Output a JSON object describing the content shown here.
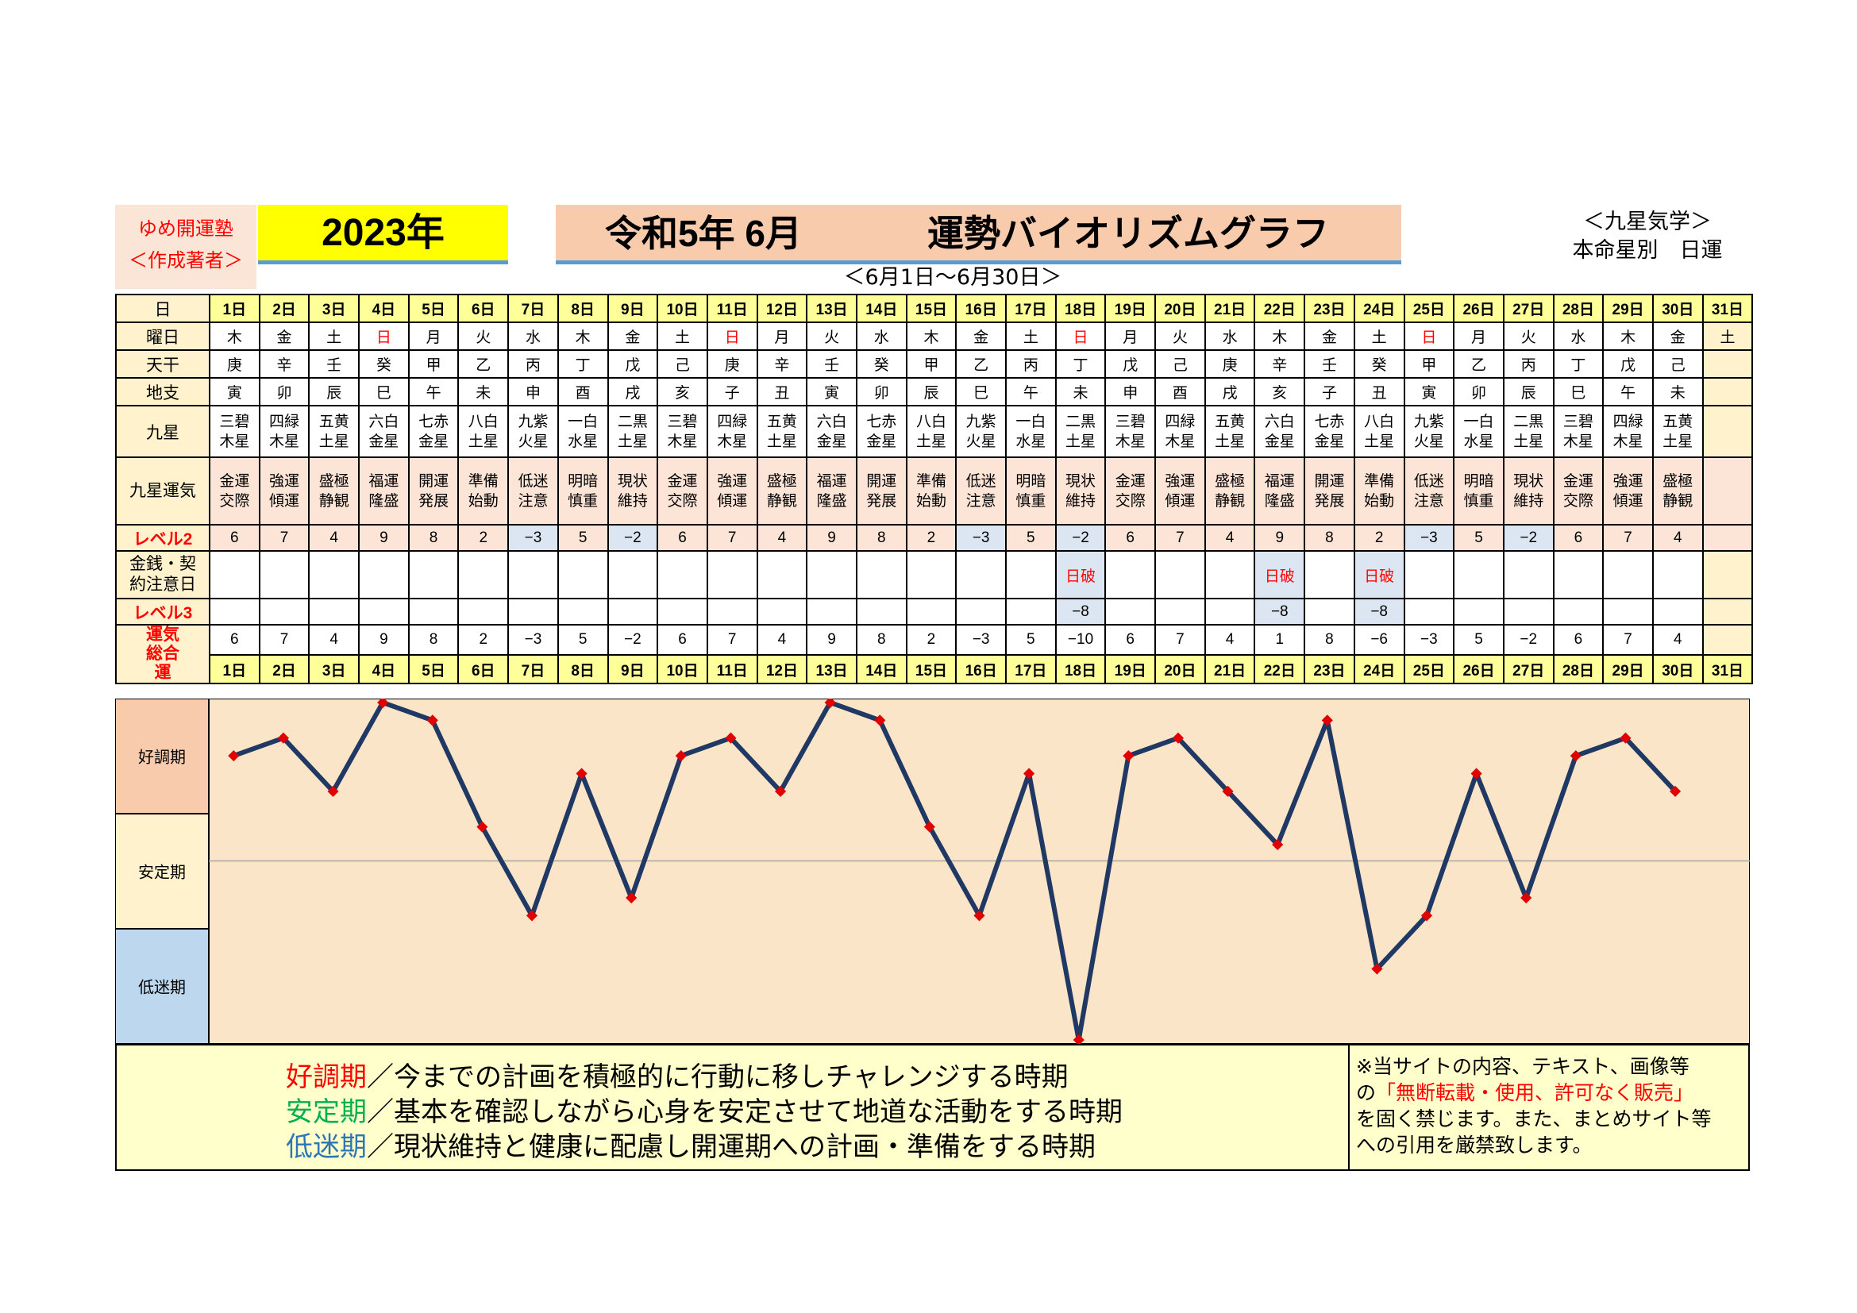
{
  "header": {
    "brand_line1": "ゆめ開運塾",
    "brand_line2": "＜作成著者＞",
    "year": "2023年",
    "title_left": "令和5年 6月",
    "title_right": "運勢バイオリズムグラフ",
    "subtitle": "＜6月1日～6月30日＞",
    "source_line1": "＜九星気学＞",
    "source_line2": "本命星別　日運"
  },
  "row_labels": {
    "day": "日",
    "weekday": "曜日",
    "stem": "天干",
    "branch": "地支",
    "star": "九星",
    "fortune": "九星運気",
    "level2": "レベル2",
    "caution": "金銭・契約注意日",
    "level3": "レベル3",
    "total": "運気総合運"
  },
  "days": [
    "1日",
    "2日",
    "3日",
    "4日",
    "5日",
    "6日",
    "7日",
    "8日",
    "9日",
    "10日",
    "11日",
    "12日",
    "13日",
    "14日",
    "15日",
    "16日",
    "17日",
    "18日",
    "19日",
    "20日",
    "21日",
    "22日",
    "23日",
    "24日",
    "25日",
    "26日",
    "27日",
    "28日",
    "29日",
    "30日",
    "31日"
  ],
  "weekdays": [
    "木",
    "金",
    "土",
    "日",
    "月",
    "火",
    "水",
    "木",
    "金",
    "土",
    "日",
    "月",
    "火",
    "水",
    "木",
    "金",
    "土",
    "日",
    "月",
    "火",
    "水",
    "木",
    "金",
    "土",
    "日",
    "月",
    "火",
    "水",
    "木",
    "金",
    "土"
  ],
  "stems": [
    "庚",
    "辛",
    "壬",
    "癸",
    "甲",
    "乙",
    "丙",
    "丁",
    "戊",
    "己",
    "庚",
    "辛",
    "壬",
    "癸",
    "甲",
    "乙",
    "丙",
    "丁",
    "戊",
    "己",
    "庚",
    "辛",
    "壬",
    "癸",
    "甲",
    "乙",
    "丙",
    "丁",
    "戊",
    "己",
    ""
  ],
  "branches": [
    "寅",
    "卯",
    "辰",
    "巳",
    "午",
    "未",
    "申",
    "酉",
    "戌",
    "亥",
    "子",
    "丑",
    "寅",
    "卯",
    "辰",
    "巳",
    "午",
    "未",
    "申",
    "酉",
    "戌",
    "亥",
    "子",
    "丑",
    "寅",
    "卯",
    "辰",
    "巳",
    "午",
    "未",
    ""
  ],
  "stars": [
    [
      "三碧",
      "木星"
    ],
    [
      "四緑",
      "木星"
    ],
    [
      "五黄",
      "土星"
    ],
    [
      "六白",
      "金星"
    ],
    [
      "七赤",
      "金星"
    ],
    [
      "八白",
      "土星"
    ],
    [
      "九紫",
      "火星"
    ],
    [
      "一白",
      "水星"
    ],
    [
      "二黒",
      "土星"
    ],
    [
      "三碧",
      "木星"
    ],
    [
      "四緑",
      "木星"
    ],
    [
      "五黄",
      "土星"
    ],
    [
      "六白",
      "金星"
    ],
    [
      "七赤",
      "金星"
    ],
    [
      "八白",
      "土星"
    ],
    [
      "九紫",
      "火星"
    ],
    [
      "一白",
      "水星"
    ],
    [
      "二黒",
      "土星"
    ],
    [
      "三碧",
      "木星"
    ],
    [
      "四緑",
      "木星"
    ],
    [
      "五黄",
      "土星"
    ],
    [
      "六白",
      "金星"
    ],
    [
      "七赤",
      "金星"
    ],
    [
      "八白",
      "土星"
    ],
    [
      "九紫",
      "火星"
    ],
    [
      "一白",
      "水星"
    ],
    [
      "二黒",
      "土星"
    ],
    [
      "三碧",
      "木星"
    ],
    [
      "四緑",
      "木星"
    ],
    [
      "五黄",
      "土星"
    ],
    [
      "",
      ""
    ]
  ],
  "fortunes": [
    [
      "金運",
      "交際"
    ],
    [
      "強運",
      "傾運"
    ],
    [
      "盛極",
      "静観"
    ],
    [
      "福運",
      "隆盛"
    ],
    [
      "開運",
      "発展"
    ],
    [
      "準備",
      "始動"
    ],
    [
      "低迷",
      "注意"
    ],
    [
      "明暗",
      "慎重"
    ],
    [
      "現状",
      "維持"
    ],
    [
      "金運",
      "交際"
    ],
    [
      "強運",
      "傾運"
    ],
    [
      "盛極",
      "静観"
    ],
    [
      "福運",
      "隆盛"
    ],
    [
      "開運",
      "発展"
    ],
    [
      "準備",
      "始動"
    ],
    [
      "低迷",
      "注意"
    ],
    [
      "明暗",
      "慎重"
    ],
    [
      "現状",
      "維持"
    ],
    [
      "金運",
      "交際"
    ],
    [
      "強運",
      "傾運"
    ],
    [
      "盛極",
      "静観"
    ],
    [
      "福運",
      "隆盛"
    ],
    [
      "開運",
      "発展"
    ],
    [
      "準備",
      "始動"
    ],
    [
      "低迷",
      "注意"
    ],
    [
      "明暗",
      "慎重"
    ],
    [
      "現状",
      "維持"
    ],
    [
      "金運",
      "交際"
    ],
    [
      "強運",
      "傾運"
    ],
    [
      "盛極",
      "静観"
    ],
    [
      "",
      ""
    ]
  ],
  "level2": [
    "6",
    "7",
    "4",
    "9",
    "8",
    "2",
    "−3",
    "5",
    "−2",
    "6",
    "7",
    "4",
    "9",
    "8",
    "2",
    "−3",
    "5",
    "−2",
    "6",
    "7",
    "4",
    "9",
    "8",
    "2",
    "−3",
    "5",
    "−2",
    "6",
    "7",
    "4",
    ""
  ],
  "caution": [
    "",
    "",
    "",
    "",
    "",
    "",
    "",
    "",
    "",
    "",
    "",
    "",
    "",
    "",
    "",
    "",
    "",
    "日破",
    "",
    "",
    "",
    "日破",
    "",
    "日破",
    "",
    "",
    "",
    "",
    "",
    "",
    ""
  ],
  "level3": [
    "",
    "",
    "",
    "",
    "",
    "",
    "",
    "",
    "",
    "",
    "",
    "",
    "",
    "",
    "",
    "",
    "",
    "−8",
    "",
    "",
    "",
    "−8",
    "",
    "−8",
    "",
    "",
    "",
    "",
    "",
    "",
    ""
  ],
  "total": [
    "6",
    "7",
    "4",
    "9",
    "8",
    "2",
    "−3",
    "5",
    "−2",
    "6",
    "7",
    "4",
    "9",
    "8",
    "2",
    "−3",
    "5",
    "−10",
    "6",
    "7",
    "4",
    "1",
    "8",
    "−6",
    "−3",
    "5",
    "−2",
    "6",
    "7",
    "4",
    ""
  ],
  "bands": {
    "good": "好調期",
    "stable": "安定期",
    "low": "低迷期"
  },
  "legend": {
    "good_key": "好調期",
    "good_text": "／今までの計画を積極的に行動に移しチャレンジする時期",
    "stable_key": "安定期",
    "stable_text": "／基本を確認しながら心身を安定させて地道な活動をする時期",
    "low_key": "低迷期",
    "low_text": "／現状維持と健康に配慮し開運期への計画・準備をする時期"
  },
  "notice": {
    "line1": "※当サイトの内容、テキスト、画像等",
    "line2a": "の",
    "line2b": "「無断転載・使用、許可なく販売」",
    "line3": "を固く禁じます。また、まとめサイト等",
    "line4": "への引用を厳禁致します。"
  },
  "colors": {
    "line": "#1f3864",
    "marker": "#e00000",
    "good_band": "#f8cbad",
    "stable_band": "#fff2cc",
    "low_band": "#bdd7ee",
    "plot_bg": "#fbe5c8",
    "red": "#ff0000",
    "green": "#00b050",
    "blue": "#2e75b6"
  },
  "chart_data": {
    "type": "line",
    "x": [
      "1日",
      "2日",
      "3日",
      "4日",
      "5日",
      "6日",
      "7日",
      "8日",
      "9日",
      "10日",
      "11日",
      "12日",
      "13日",
      "14日",
      "15日",
      "16日",
      "17日",
      "18日",
      "19日",
      "20日",
      "21日",
      "22日",
      "23日",
      "24日",
      "25日",
      "26日",
      "27日",
      "28日",
      "29日",
      "30日"
    ],
    "values": [
      6,
      7,
      4,
      9,
      8,
      2,
      -3,
      5,
      -2,
      6,
      7,
      4,
      9,
      8,
      2,
      -3,
      5,
      -10,
      6,
      7,
      4,
      1,
      8,
      -6,
      -3,
      5,
      -2,
      6,
      7,
      4
    ],
    "ylim": [
      -10,
      9
    ],
    "grid": false
  }
}
